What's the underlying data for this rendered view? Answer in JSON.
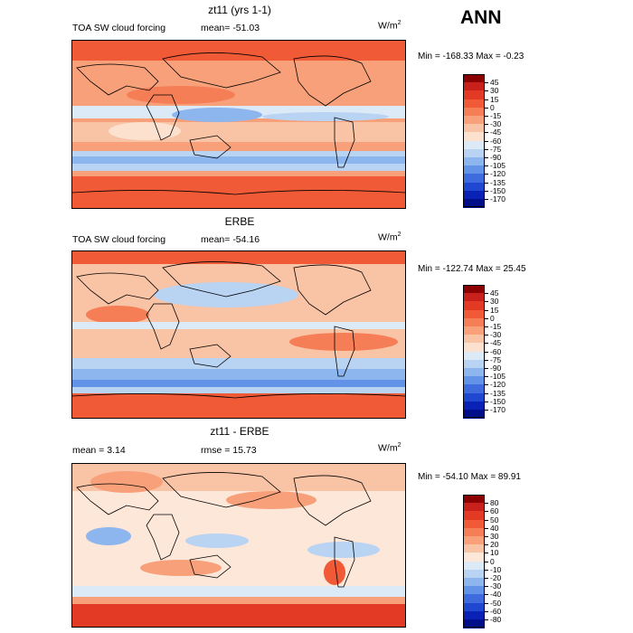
{
  "season": "ANN",
  "panels": [
    {
      "title": "zt11 (yrs 1-1)",
      "left_label": "TOA SW cloud forcing",
      "stat1": "mean=  -51.03",
      "stat2": "",
      "units": "W/m",
      "units_sup": "2",
      "minmax": "Min = -168.33 Max =   -0.23",
      "colorbar_labels": [
        "45",
        "30",
        "15",
        "0",
        "-15",
        "-30",
        "-45",
        "-60",
        "-75",
        "-90",
        "-105",
        "-120",
        "-135",
        "-150",
        "-170"
      ],
      "colorbar_colors": [
        "#8b0000",
        "#c8201a",
        "#e23a24",
        "#f05a36",
        "#f57e56",
        "#f7a079",
        "#f9c3a5",
        "#fce1cf",
        "#dce9f7",
        "#b9d3f3",
        "#8db5ee",
        "#6393e6",
        "#3e6cde",
        "#1f47cf",
        "#0a21b5",
        "#000e8a"
      ]
    },
    {
      "title": "ERBE",
      "left_label": "TOA SW cloud forcing",
      "stat1": "mean=  -54.16",
      "stat2": "",
      "units": "W/m",
      "units_sup": "2",
      "minmax": "Min = -122.74 Max =  25.45",
      "colorbar_labels": [
        "45",
        "30",
        "15",
        "0",
        "-15",
        "-30",
        "-45",
        "-60",
        "-75",
        "-90",
        "-105",
        "-120",
        "-135",
        "-150",
        "-170"
      ],
      "colorbar_colors": [
        "#8b0000",
        "#c8201a",
        "#e23a24",
        "#f05a36",
        "#f57e56",
        "#f7a079",
        "#f9c3a5",
        "#fce1cf",
        "#dce9f7",
        "#b9d3f3",
        "#8db5ee",
        "#6393e6",
        "#3e6cde",
        "#1f47cf",
        "#0a21b5",
        "#000e8a"
      ]
    },
    {
      "title": "zt11 - ERBE",
      "left_label": "mean =    3.14",
      "stat1": "rmse =  15.73",
      "stat2": "",
      "units": "W/m",
      "units_sup": "2",
      "minmax": "Min = -54.10 Max =  89.91",
      "colorbar_labels": [
        "80",
        "60",
        "50",
        "40",
        "30",
        "20",
        "10",
        "0",
        "-10",
        "-20",
        "-30",
        "-40",
        "-50",
        "-60",
        "-80"
      ],
      "colorbar_colors": [
        "#8b0000",
        "#c8201a",
        "#e23a24",
        "#f05a36",
        "#f57e56",
        "#f7a079",
        "#f9c3a5",
        "#fde7d9",
        "#dce9f7",
        "#b9d3f3",
        "#8db5ee",
        "#6393e6",
        "#3e6cde",
        "#1f47cf",
        "#0a21b5",
        "#000e8a"
      ]
    }
  ]
}
